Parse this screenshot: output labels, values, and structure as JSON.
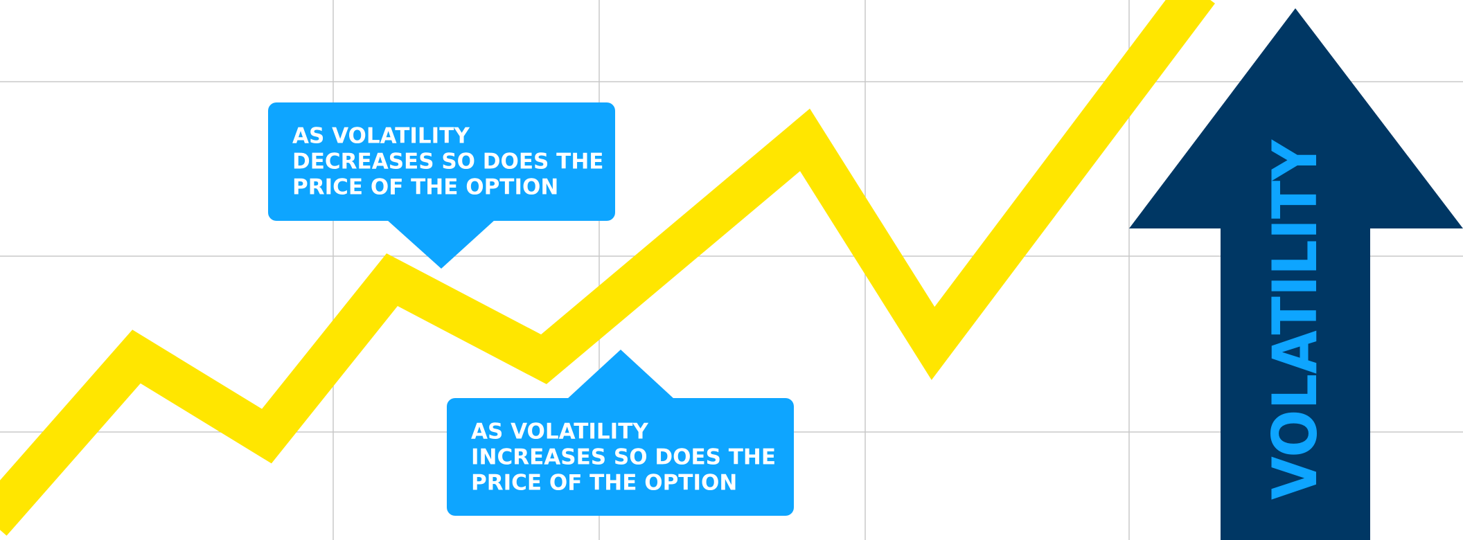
{
  "callouts": [
    {
      "lines": [
        "AS VOLATILITY",
        "DECREASES SO DOES THE",
        "PRICE OF THE OPTION"
      ]
    },
    {
      "lines": [
        "AS VOLATILITY",
        "INCREASES SO DOES THE",
        "PRICE OF THE OPTION"
      ]
    }
  ],
  "arrow": {
    "label": "VOLATILITY"
  }
}
